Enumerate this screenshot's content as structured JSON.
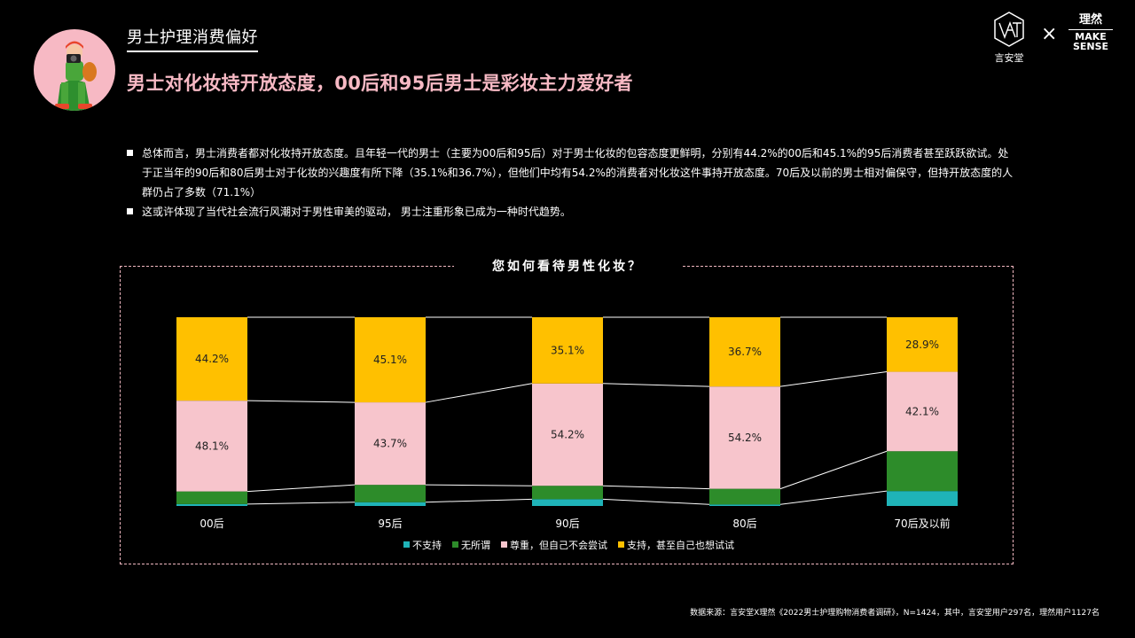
{
  "header": {
    "section_title": "男士护理消费偏好",
    "headline": "男士对化妆持开放态度，00后和95后男士是彩妆主力爱好者"
  },
  "logos": {
    "ant_text": "言安堂",
    "times": "×",
    "ms_cn": "理然",
    "ms_en_1": "MAKE",
    "ms_en_2": "SENSE"
  },
  "bullets": [
    "总体而言，男士消费者都对化妆持开放态度。且年轻一代的男士（主要为00后和95后）对于男士化妆的包容态度更鲜明，分别有44.2%的00后和45.1%的95后消费者甚至跃跃欲试。处于正当年的90后和80后男士对于化妆的兴趣度有所下降（35.1%和36.7%），但他们中均有54.2%的消费者对化妆这件事持开放态度。70后及以前的男士相对偏保守，但持开放态度的人群仍占了多数（71.1%）",
    "这或许体现了当代社会流行风潮对于男性审美的驱动， 男士注重形象已成为一种时代趋势。"
  ],
  "chart_data": {
    "type": "bar",
    "stacked": true,
    "normalized": true,
    "title": "您如何看待男性化妆？",
    "categories": [
      "00后",
      "95后",
      "90后",
      "80后",
      "70后及以前"
    ],
    "series": [
      {
        "name": "不支持",
        "color": "#1fb3b8",
        "values": [
          1.0,
          2.0,
          3.6,
          0.8,
          7.9
        ]
      },
      {
        "name": "无所谓",
        "color": "#2d8c2a",
        "values": [
          6.7,
          9.2,
          7.1,
          8.3,
          21.1
        ]
      },
      {
        "name": "尊重，但自己不会尝试",
        "color": "#f7c5cc",
        "values": [
          48.1,
          43.7,
          54.2,
          54.2,
          42.1
        ],
        "labels": [
          "48.1%",
          "43.7%",
          "54.2%",
          "54.2%",
          "42.1%"
        ]
      },
      {
        "name": "支持，甚至自己也想试试",
        "color": "#ffc000",
        "values": [
          44.2,
          45.1,
          35.1,
          36.7,
          28.9
        ],
        "labels": [
          "44.2%",
          "45.1%",
          "35.1%",
          "36.7%",
          "28.9%"
        ]
      }
    ],
    "ylim": [
      0,
      100
    ],
    "legend_position": "bottom"
  },
  "source": "数据来源：言安堂X理然《2022男士护理购物消费者调研》，N=1424，其中，言安堂用户297名，理然用户1127名"
}
